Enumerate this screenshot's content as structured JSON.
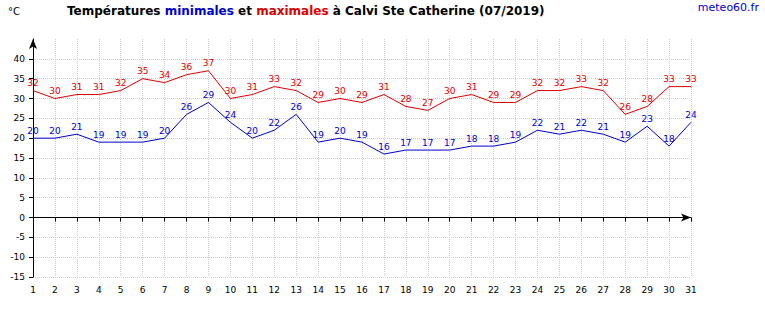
{
  "chart_data": {
    "type": "line",
    "title": "Températures minimales et maximales à Calvi Ste Catherine (07/2019)",
    "annotations": [
      "meteo60.fr"
    ],
    "ylabel": "°C",
    "categories": [
      "1",
      "2",
      "3",
      "4",
      "5",
      "6",
      "7",
      "8",
      "9",
      "10",
      "11",
      "12",
      "13",
      "14",
      "15",
      "16",
      "17",
      "18",
      "19",
      "20",
      "21",
      "22",
      "23",
      "24",
      "25",
      "26",
      "27",
      "28",
      "29",
      "30",
      "31"
    ],
    "series": [
      {
        "name": "minimales",
        "color": "#0000cc",
        "values": [
          20,
          20,
          21,
          19,
          19,
          19,
          20,
          26,
          29,
          24,
          20,
          22,
          26,
          19,
          20,
          19,
          16,
          17,
          17,
          17,
          18,
          18,
          19,
          22,
          21,
          22,
          21,
          19,
          23,
          18,
          24
        ]
      },
      {
        "name": "maximales",
        "color": "#dd0000",
        "values": [
          32,
          30,
          31,
          31,
          32,
          35,
          34,
          36,
          37,
          30,
          31,
          33,
          32,
          29,
          30,
          29,
          31,
          28,
          27,
          30,
          31,
          29,
          29,
          32,
          32,
          33,
          32,
          26,
          28,
          33,
          33
        ]
      }
    ],
    "ylim": [
      -15,
      45
    ],
    "yticks": [
      -15,
      -10,
      -5,
      0,
      5,
      10,
      15,
      20,
      25,
      30,
      35,
      40
    ],
    "grid": true,
    "data_labels": true
  }
}
